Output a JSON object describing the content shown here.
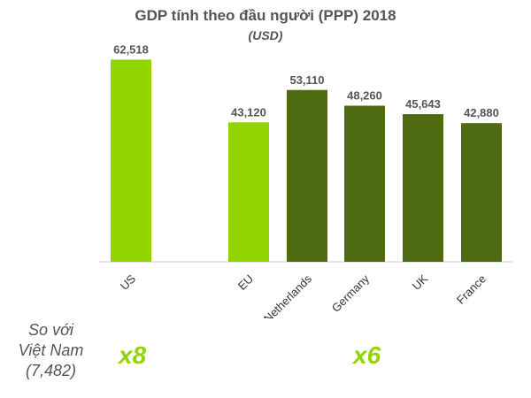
{
  "colors": {
    "light": "#92D400",
    "dark": "#4F6B12",
    "text": "#555555",
    "axis": "#d0d0d0"
  },
  "chart_data": {
    "type": "bar",
    "title": "GDP tính theo đầu người (PPP) 2018",
    "subtitle": "(USD)",
    "categories": [
      "US",
      "EU",
      "Netherlands",
      "Germany",
      "UK",
      "France"
    ],
    "values": [
      62518,
      43120,
      53110,
      48260,
      45643,
      42880
    ],
    "value_labels": [
      "62,518",
      "43,120",
      "53,110",
      "48,260",
      "45,643",
      "42,880"
    ],
    "bar_colors": [
      "#92D400",
      "#92D400",
      "#4F6B12",
      "#4F6B12",
      "#4F6B12",
      "#4F6B12"
    ],
    "ylim": [
      0,
      70000
    ],
    "xlabel": "",
    "ylabel": "",
    "grid": false
  },
  "comparison": {
    "lines": [
      "So với",
      "Việt Nam",
      "(7,482)"
    ],
    "multipliers": [
      {
        "label": "x8",
        "color": "#92D400"
      },
      {
        "label": "x6",
        "color": "#92D400"
      }
    ]
  }
}
